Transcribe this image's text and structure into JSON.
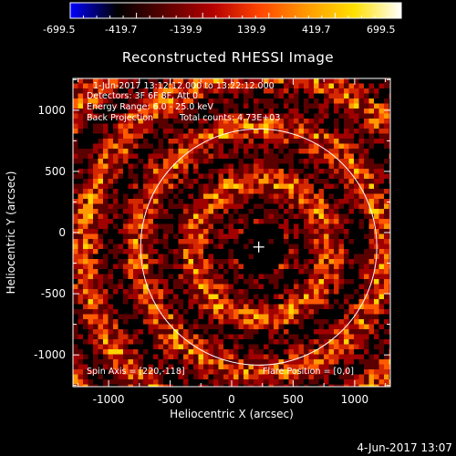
{
  "colorbar": {
    "labels": [
      "-699.5",
      "-419.7",
      "-139.9",
      "139.9",
      "419.7",
      "699.5"
    ],
    "stops": [
      "#0000ff",
      "#000000",
      "#5a0000",
      "#b30000",
      "#ff4500",
      "#ff9a00",
      "#ffe000",
      "#ffffff"
    ]
  },
  "chart_data": {
    "type": "heatmap",
    "title": "Reconstructed RHESSI Image",
    "xlabel": "Heliocentric X (arcsec)",
    "ylabel": "Heliocentric Y (arcsec)",
    "xlim": [
      -1290,
      1290
    ],
    "ylim": [
      -1260,
      1260
    ],
    "xticks": [
      -1000,
      -500,
      0,
      500,
      1000
    ],
    "yticks": [
      -1000,
      -500,
      0,
      500,
      1000
    ],
    "xtick_labels": [
      "-1000",
      "-500",
      "0",
      "500",
      "1000"
    ],
    "ytick_labels": [
      "-1000",
      "-500",
      "0",
      "500",
      "1000"
    ],
    "value_range": [
      -699.5,
      699.5
    ],
    "solar_limb": {
      "center": [
        220,
        -118
      ],
      "radius": 960
    },
    "flare_position": [
      0,
      0
    ],
    "annotations": [
      "1-Jun-2017 13:12:12.000 to 13:22:12.000",
      "Detectors: 3F 6F 8F, Att 0",
      "Energy Range: 6.0 - 25.0 keV",
      "Back Projection",
      "Total counts: 4.73E+03"
    ],
    "footer_left": "Spin Axis = [220,-118]",
    "footer_right": "Flare Position = [0,0]",
    "timestamp": "4-Jun-2017 13:07"
  }
}
